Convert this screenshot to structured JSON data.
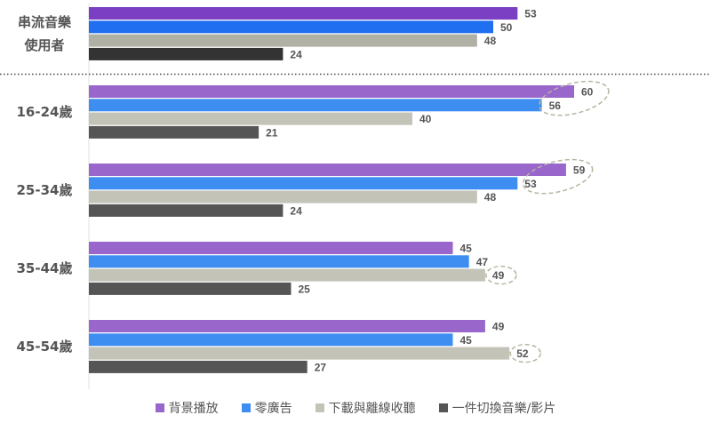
{
  "chart_data": {
    "type": "bar",
    "orientation": "horizontal",
    "xlim": [
      0,
      90
    ],
    "grid": false,
    "legend_placement": "bottom",
    "series": [
      {
        "name": "背景播放",
        "color": "#9966cc"
      },
      {
        "name": "零廣告",
        "color": "#3d8ef0"
      },
      {
        "name": "下載與離線收聽",
        "color": "#c3c3b8"
      },
      {
        "name": "一件切換音樂/影片",
        "color": "#555555"
      }
    ],
    "groups": [
      {
        "label": "串流音樂\n使用者",
        "values": [
          53,
          50,
          48,
          24
        ],
        "colors": [
          "#7a3fc2",
          "#1f6ff0",
          "#b0b0a4",
          "#333333"
        ]
      },
      {
        "label": "16-24歲",
        "values": [
          60,
          56,
          40,
          21
        ]
      },
      {
        "label": "25-34歲",
        "values": [
          59,
          53,
          48,
          24
        ]
      },
      {
        "label": "35-44歲",
        "values": [
          45,
          47,
          49,
          25
        ]
      },
      {
        "label": "45-54歲",
        "values": [
          49,
          45,
          52,
          27
        ]
      }
    ],
    "annotations": [
      {
        "group": "16-24歲",
        "series": [
          "背景播放",
          "零廣告"
        ],
        "type": "dashed-ellipse"
      },
      {
        "group": "25-34歲",
        "series": [
          "背景播放",
          "零廣告"
        ],
        "type": "dashed-ellipse"
      },
      {
        "group": "35-44歲",
        "series": [
          "下載與離線收聽"
        ],
        "type": "dashed-ellipse"
      },
      {
        "group": "45-54歲",
        "series": [
          "下載與離線收聽"
        ],
        "type": "dashed-ellipse"
      }
    ]
  },
  "legend": [
    {
      "label": "背景播放",
      "color": "#9966cc"
    },
    {
      "label": "零廣告",
      "color": "#3d8ef0"
    },
    {
      "label": "下載與離線收聽",
      "color": "#c3c3b8"
    },
    {
      "label": "一件切換音樂/影片",
      "color": "#555555"
    }
  ]
}
